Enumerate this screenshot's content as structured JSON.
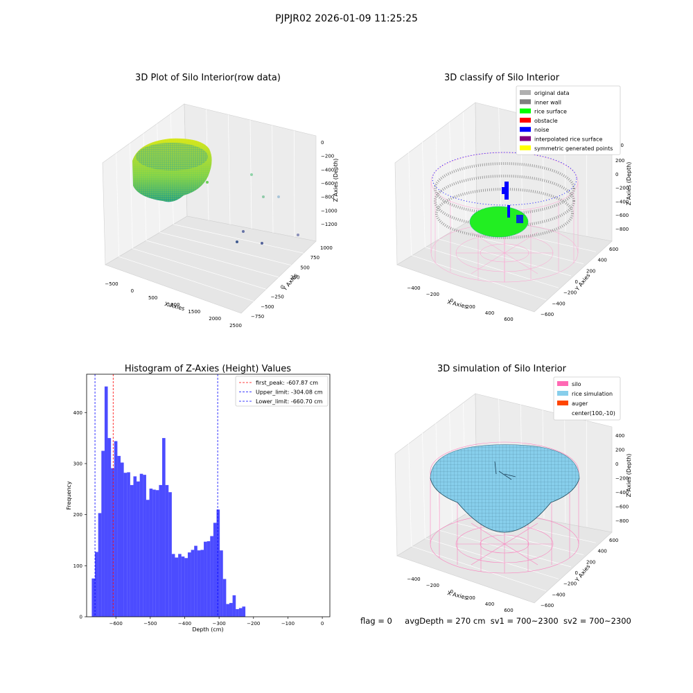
{
  "figure_title": "PJPJR02 2026-01-09 11:25:25",
  "footer": {
    "flag": "flag = 0",
    "avg_depth": "avgDepth = 270 cm",
    "sv1": "sv1 = 700~2300",
    "sv2": "sv2 = 700~2300"
  },
  "panels": {
    "raw": {
      "title": "3D Plot of Silo Interior(row data)",
      "xlabel": "X Axies",
      "ylabel": "Y Axies",
      "zlabel": "Z Axies (Depth)",
      "xticks": [
        "−500",
        "0",
        "500",
        "1000",
        "1500",
        "2000",
        "2500"
      ],
      "yticks": [
        "−750",
        "−500",
        "−250",
        "0",
        "250",
        "500",
        "750",
        "1000"
      ],
      "zticks": [
        "0",
        "−200",
        "−400",
        "−600",
        "−800",
        "−1000",
        "−1200"
      ]
    },
    "classify": {
      "title": "3D classify of Silo Interior",
      "xlabel": "X Axies",
      "ylabel": "Y Axies",
      "zlabel": "Z Axies (Depth)",
      "xticks": [
        "−400",
        "−200",
        "0",
        "200",
        "400",
        "600"
      ],
      "yticks": [
        "−600",
        "−400",
        "−200",
        "0",
        "200",
        "400",
        "600"
      ],
      "zticks": [
        "200",
        "0",
        "−200",
        "−400",
        "−600",
        "−800"
      ],
      "zticks_partial_top": "00",
      "legend": [
        {
          "label": "original data",
          "color": "#b0b0b0"
        },
        {
          "label": "inner wall",
          "color": "#808080"
        },
        {
          "label": "rice surface",
          "color": "#00ff00"
        },
        {
          "label": "obstacle",
          "color": "#ff0000"
        },
        {
          "label": "noise",
          "color": "#0000ff"
        },
        {
          "label": "interpolated rice surface",
          "color": "#800080"
        },
        {
          "label": "symmetric generated points",
          "color": "#ffff00"
        }
      ]
    },
    "simulation": {
      "title": "3D simulation of Silo Interior",
      "xlabel": "X Axies",
      "ylabel": "Y Axies",
      "zlabel": "Z Axies (Depth)",
      "xticks": [
        "−400",
        "−200",
        "0",
        "200",
        "400",
        "600"
      ],
      "yticks": [
        "−600",
        "−400",
        "−200",
        "0",
        "200",
        "400",
        "600"
      ],
      "zticks": [
        "400",
        "200",
        "0",
        "−200",
        "−400",
        "−600",
        "−800"
      ],
      "legend": [
        {
          "label": "silo",
          "color": "#ff69b4"
        },
        {
          "label": "rice simulation",
          "color": "#87ceeb"
        },
        {
          "label": "auger",
          "color": "#ff4500"
        },
        {
          "label": "center(100,-10)",
          "color": ""
        }
      ]
    }
  },
  "colors": {
    "histogram_bar": "#0000ff",
    "first_peak_line": "#ff0000",
    "limit_lines": "#0000ff",
    "silo_wire": "#ff69b4",
    "rice_surface": "#87ceeb",
    "inner_wall": "#808080",
    "rice_green": "#00ff00"
  },
  "chart_data": {
    "type": "bar",
    "title": "Histogram of Z-Axies (Height) Values",
    "xlabel": "Depth (cm)",
    "ylabel": "Frequency",
    "xlim": [
      -685,
      22
    ],
    "ylim": [
      0,
      475
    ],
    "xticks": [
      -600,
      -500,
      -400,
      -300,
      -200,
      -100,
      0
    ],
    "xtick_labels": [
      "−600",
      "−500",
      "−400",
      "−300",
      "−200",
      "−100",
      "0"
    ],
    "yticks": [
      0,
      100,
      200,
      300,
      400
    ],
    "ytick_labels": [
      "0",
      "100",
      "200",
      "300",
      "400"
    ],
    "bin_start": -670,
    "bin_width": 9.3,
    "values": [
      75,
      127,
      203,
      325,
      451,
      350,
      291,
      344,
      315,
      302,
      282,
      283,
      258,
      275,
      265,
      280,
      278,
      229,
      251,
      249,
      248,
      258,
      350,
      258,
      244,
      123,
      116,
      123,
      118,
      115,
      126,
      131,
      139,
      130,
      131,
      147,
      148,
      158,
      184,
      210,
      130,
      74,
      25,
      27,
      42,
      15,
      17,
      20
    ],
    "vlines": [
      {
        "label": "first_peak: -607.87 cm",
        "x": -607.87,
        "color": "#ff0000"
      },
      {
        "label": "Upper_limit: -304.08 cm",
        "x": -304.08,
        "color": "#0000ff"
      },
      {
        "label": "Lower_limit: -660.70 cm",
        "x": -660.7,
        "color": "#0000ff"
      }
    ],
    "legend_position": "upper right"
  }
}
